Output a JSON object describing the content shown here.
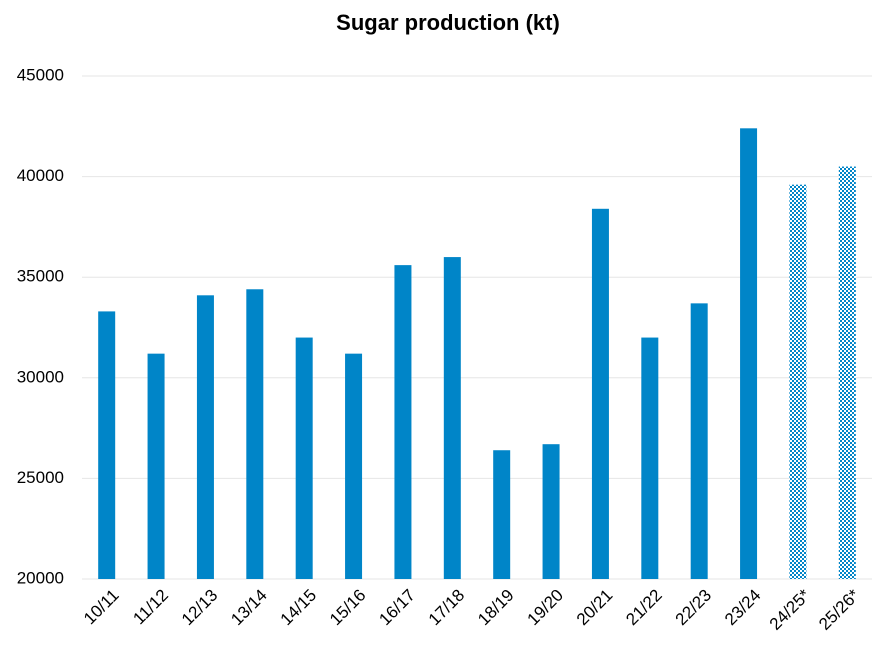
{
  "chart_data": {
    "type": "bar",
    "title": "Sugar production (kt)",
    "categories": [
      "10/11",
      "11/12",
      "12/13",
      "13/14",
      "14/15",
      "15/16",
      "16/17",
      "17/18",
      "18/19",
      "19/20",
      "20/21",
      "21/22",
      "22/23",
      "23/24",
      "24/25*",
      "25/26*"
    ],
    "values": [
      33300,
      31200,
      34100,
      34400,
      32000,
      31200,
      35600,
      36000,
      26400,
      26700,
      38400,
      32000,
      33700,
      42400,
      39600,
      40500
    ],
    "color": "#0085c8",
    "hatch": [
      false,
      false,
      false,
      false,
      false,
      false,
      false,
      false,
      false,
      false,
      false,
      false,
      false,
      false,
      true,
      true
    ],
    "ylim": [
      20000,
      45000
    ],
    "yticks": [
      20000,
      25000,
      30000,
      35000,
      40000,
      45000
    ],
    "grid": true
  }
}
